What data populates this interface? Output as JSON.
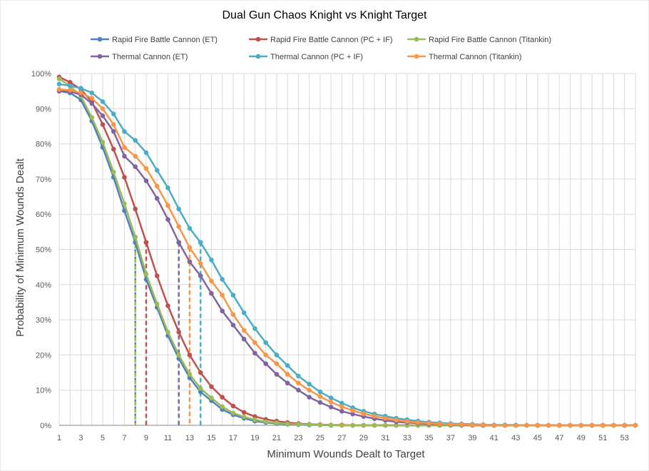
{
  "chart_data": {
    "type": "line",
    "title": "Dual Gun Chaos Knight vs Knight Target",
    "xlabel": "Minimum Wounds Dealt  to Target",
    "ylabel": "Probability of Minimum Wounds Dealt",
    "xlim": [
      1,
      54
    ],
    "ylim": [
      0,
      1
    ],
    "x_ticks": [
      1,
      3,
      5,
      7,
      9,
      11,
      13,
      15,
      17,
      19,
      21,
      23,
      25,
      27,
      29,
      31,
      33,
      35,
      37,
      39,
      41,
      43,
      45,
      47,
      49,
      51,
      53
    ],
    "y_ticks": [
      0,
      0.1,
      0.2,
      0.3,
      0.4,
      0.5,
      0.6,
      0.7,
      0.8,
      0.9,
      1.0
    ],
    "y_tick_labels": [
      "0%",
      "10%",
      "20%",
      "30%",
      "40%",
      "50%",
      "60%",
      "70%",
      "80%",
      "90%",
      "100%"
    ],
    "grid": true,
    "legend_position": "top",
    "x": [
      1,
      2,
      3,
      4,
      5,
      6,
      7,
      8,
      9,
      10,
      11,
      12,
      13,
      14,
      15,
      16,
      17,
      18,
      19,
      20,
      21,
      22,
      23,
      24,
      25,
      26,
      27,
      28,
      29,
      30,
      31,
      32,
      33,
      34,
      35,
      36,
      37,
      38,
      39,
      40,
      41,
      42,
      43,
      44,
      45,
      46,
      47,
      48,
      49,
      50,
      51,
      52,
      53,
      54
    ],
    "series": [
      {
        "name": "Rapid Fire Battle Cannon (ET)",
        "color": "#4f81bd",
        "median": 8,
        "values": [
          0.95,
          0.945,
          0.925,
          0.865,
          0.79,
          0.705,
          0.61,
          0.52,
          0.415,
          0.335,
          0.255,
          0.19,
          0.135,
          0.095,
          0.07,
          0.045,
          0.03,
          0.02,
          0.012,
          0.008,
          0.005,
          0.003,
          0.002,
          0.001,
          0.001,
          0,
          0,
          0,
          0,
          0,
          0,
          0,
          0,
          0,
          0,
          0,
          0,
          0,
          0,
          0,
          0,
          0,
          0,
          0,
          0,
          0,
          0,
          0,
          0,
          0,
          0,
          0,
          0,
          0
        ]
      },
      {
        "name": "Rapid Fire Battle Cannon (PC + IF)",
        "color": "#c0504d",
        "median": 9,
        "values": [
          0.99,
          0.975,
          0.955,
          0.92,
          0.855,
          0.785,
          0.705,
          0.615,
          0.52,
          0.425,
          0.34,
          0.265,
          0.2,
          0.15,
          0.11,
          0.08,
          0.055,
          0.037,
          0.025,
          0.017,
          0.012,
          0.008,
          0.005,
          0.003,
          0.002,
          0.001,
          0.001,
          0,
          0,
          0,
          0,
          0,
          0,
          0,
          0,
          0,
          0,
          0,
          0,
          0,
          0,
          0,
          0,
          0,
          0,
          0,
          0,
          0,
          0,
          0,
          0,
          0,
          0,
          0
        ]
      },
      {
        "name": "Rapid Fire Battle Cannon (Titankin)",
        "color": "#9bbb59",
        "median": 8,
        "values": [
          0.985,
          0.965,
          0.935,
          0.875,
          0.805,
          0.72,
          0.63,
          0.535,
          0.43,
          0.345,
          0.265,
          0.2,
          0.145,
          0.105,
          0.078,
          0.053,
          0.035,
          0.024,
          0.016,
          0.01,
          0.007,
          0.004,
          0.003,
          0.002,
          0.001,
          0.001,
          0,
          0,
          0,
          0,
          0,
          0,
          0,
          0,
          0,
          0,
          0,
          0,
          0,
          0,
          0,
          0,
          0,
          0,
          0,
          0,
          0,
          0,
          0,
          0,
          0,
          0,
          0,
          0
        ]
      },
      {
        "name": "Thermal Cannon (ET)",
        "color": "#8064a2",
        "median": 12,
        "values": [
          0.95,
          0.948,
          0.94,
          0.915,
          0.88,
          0.835,
          0.765,
          0.735,
          0.695,
          0.645,
          0.585,
          0.52,
          0.465,
          0.425,
          0.375,
          0.325,
          0.285,
          0.245,
          0.205,
          0.175,
          0.145,
          0.12,
          0.1,
          0.08,
          0.065,
          0.052,
          0.04,
          0.032,
          0.025,
          0.019,
          0.014,
          0.01,
          0.008,
          0.006,
          0.004,
          0.003,
          0.002,
          0.001,
          0.001,
          0,
          0,
          0,
          0,
          0,
          0,
          0,
          0,
          0,
          0,
          0,
          0,
          0,
          0,
          0
        ]
      },
      {
        "name": "Thermal Cannon (PC + IF)",
        "color": "#4bacc6",
        "median": 14,
        "values": [
          0.97,
          0.965,
          0.958,
          0.945,
          0.92,
          0.885,
          0.835,
          0.81,
          0.775,
          0.725,
          0.675,
          0.615,
          0.56,
          0.52,
          0.47,
          0.415,
          0.37,
          0.32,
          0.275,
          0.235,
          0.2,
          0.17,
          0.14,
          0.117,
          0.095,
          0.078,
          0.063,
          0.05,
          0.04,
          0.032,
          0.026,
          0.02,
          0.016,
          0.012,
          0.009,
          0.007,
          0.005,
          0.004,
          0.003,
          0.002,
          0.001,
          0.001,
          0.001,
          0,
          0,
          0,
          0,
          0,
          0,
          0,
          0,
          0,
          0,
          0
        ]
      },
      {
        "name": "Thermal Cannon (Titankin)",
        "color": "#f79646",
        "median": 13,
        "values": [
          0.955,
          0.953,
          0.945,
          0.93,
          0.9,
          0.855,
          0.79,
          0.765,
          0.73,
          0.68,
          0.625,
          0.565,
          0.505,
          0.46,
          0.41,
          0.37,
          0.315,
          0.27,
          0.235,
          0.2,
          0.175,
          0.145,
          0.12,
          0.1,
          0.082,
          0.066,
          0.053,
          0.042,
          0.033,
          0.026,
          0.02,
          0.015,
          0.011,
          0.008,
          0.006,
          0.004,
          0.003,
          0.002,
          0.001,
          0.001,
          0,
          0,
          0,
          0,
          0,
          0,
          0,
          0,
          0,
          0,
          0,
          0,
          0,
          0
        ]
      }
    ]
  }
}
